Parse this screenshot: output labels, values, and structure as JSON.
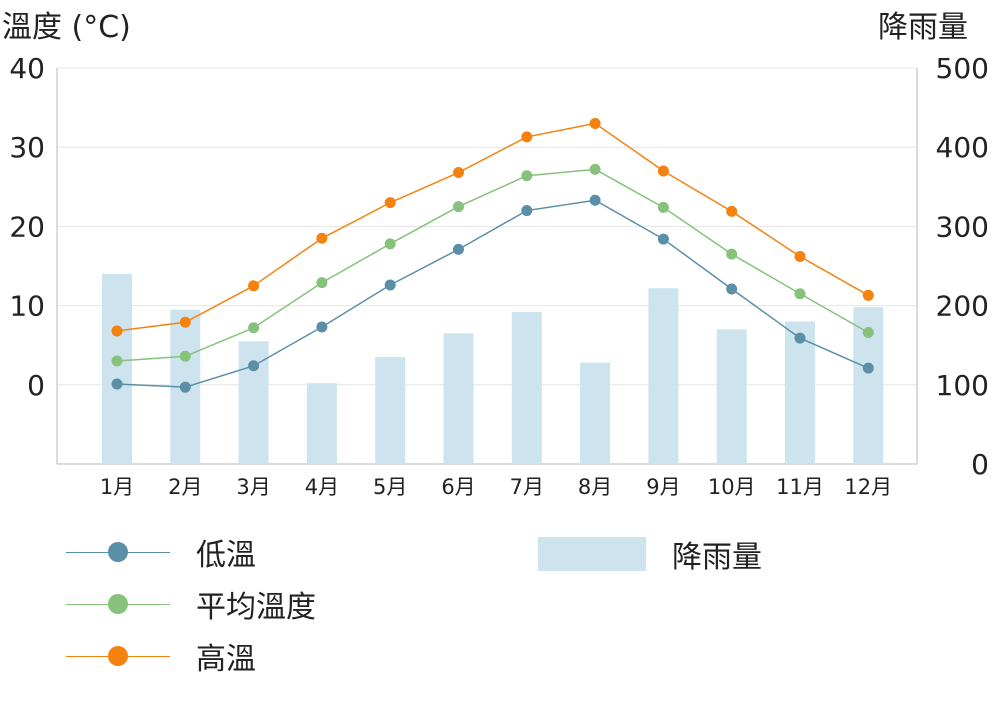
{
  "chart_data": {
    "type": "bar+line",
    "categories": [
      "1月",
      "2月",
      "3月",
      "4月",
      "5月",
      "6月",
      "7月",
      "8月",
      "9月",
      "10月",
      "11月",
      "12月"
    ],
    "ylabel_left": "溫度 (°C)",
    "ylabel_right": "降雨量",
    "ylim_left": [
      -10,
      40
    ],
    "ylim_right": [
      0,
      500
    ],
    "yticks_left": [
      0,
      10,
      20,
      30,
      40
    ],
    "yticks_right": [
      0,
      100,
      200,
      300,
      400,
      500
    ],
    "bars": {
      "name": "降雨量",
      "color": "#cde3ed",
      "values": [
        240,
        195,
        155,
        102,
        135,
        165,
        192,
        128,
        222,
        170,
        180,
        198
      ]
    },
    "series": [
      {
        "name": "低溫",
        "color": "#5b8fa8",
        "values": [
          0.1,
          -0.3,
          2.4,
          7.3,
          12.6,
          17.1,
          22.0,
          23.3,
          18.4,
          12.1,
          5.9,
          2.1
        ]
      },
      {
        "name": "平均溫度",
        "color": "#86c27b",
        "values": [
          3.0,
          3.6,
          7.2,
          12.9,
          17.8,
          22.5,
          26.4,
          27.2,
          22.4,
          16.5,
          11.5,
          6.6
        ]
      },
      {
        "name": "高溫",
        "color": "#f5820f",
        "values": [
          6.8,
          7.9,
          12.5,
          18.5,
          23.0,
          26.8,
          31.3,
          33.0,
          27.0,
          21.9,
          16.2,
          11.3
        ]
      }
    ],
    "grid": true,
    "legend_position": "bottom"
  }
}
